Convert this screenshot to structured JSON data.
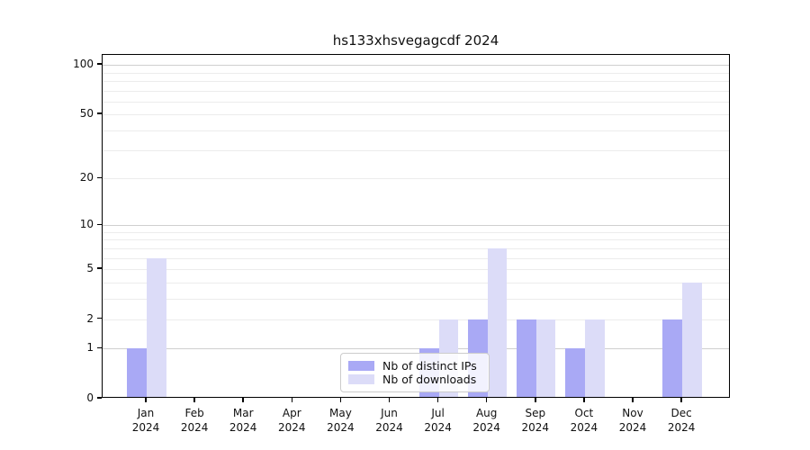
{
  "title": "hs133xhsvegagcdf 2024",
  "chart_data": {
    "type": "bar",
    "title": "hs133xhsvegagcdf 2024",
    "categories": [
      "Jan 2024",
      "Feb 2024",
      "Mar 2024",
      "Apr 2024",
      "May 2024",
      "Jun 2024",
      "Jul 2024",
      "Aug 2024",
      "Sep 2024",
      "Oct 2024",
      "Nov 2024",
      "Dec 2024"
    ],
    "series": [
      {
        "name": "Nb of distinct IPs",
        "color": "#a9a9f5",
        "values": [
          1,
          0,
          0,
          0,
          0,
          0,
          1,
          2,
          2,
          1,
          0,
          2
        ]
      },
      {
        "name": "Nb of downloads",
        "color": "#dcdcf8",
        "values": [
          6,
          0,
          0,
          0,
          0,
          0,
          2,
          7,
          2,
          2,
          0,
          4
        ]
      }
    ],
    "xlabel": "",
    "ylabel": "",
    "yscale": "log1p",
    "ylim": [
      0,
      118
    ],
    "yticks": [
      0,
      1,
      2,
      5,
      10,
      20,
      50,
      100
    ],
    "grid_major_values": [
      1,
      10,
      100
    ],
    "grid_minor_values": [
      2,
      3,
      4,
      5,
      6,
      7,
      8,
      9,
      20,
      30,
      40,
      50,
      60,
      70,
      80,
      90
    ],
    "grid": "horizontal-only",
    "legend_position": "lower-center-inside"
  },
  "colors": {
    "grid_major": "#cfcfcf",
    "grid_minor": "#ececec",
    "axis": "#000000",
    "background": "#ffffff"
  }
}
